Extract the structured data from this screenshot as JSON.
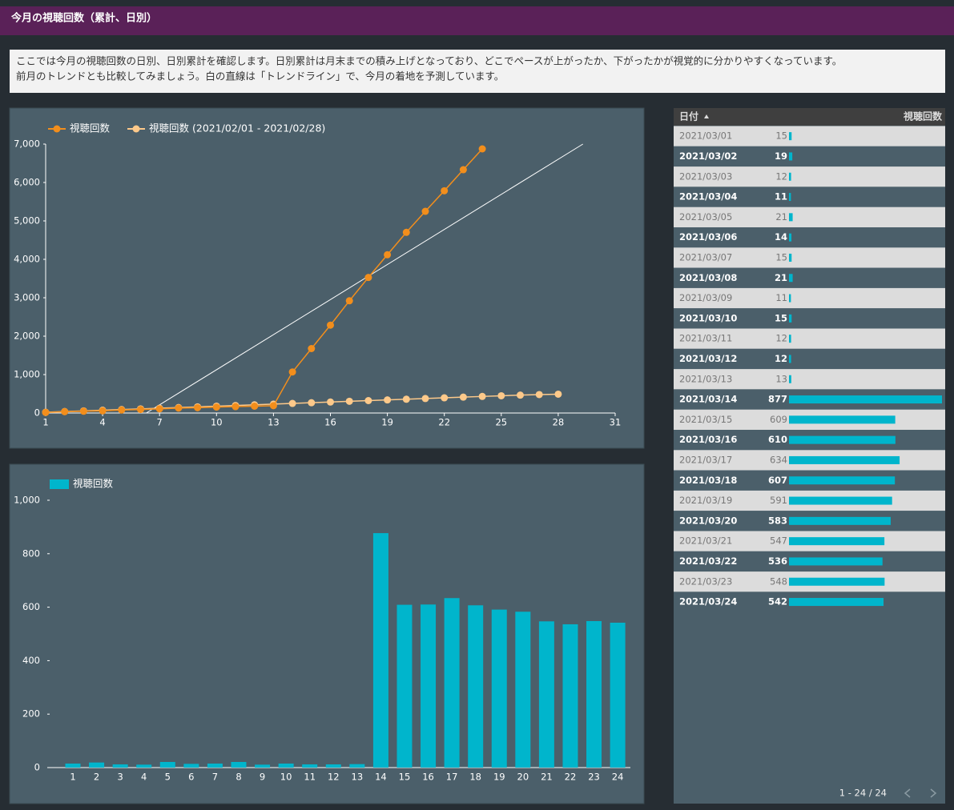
{
  "header": {
    "title": "今月の視聴回数（累計、日別）"
  },
  "description": [
    "ここでは今月の視聴回数の日別、日別累計を確認します。日別累計は月末までの積み上げとなっており、どこでペースが上がったか、下がったかが視覚的に分かりやすくなっています。",
    "前月のトレンドとも比較してみましょう。白の直線は「トレンドライン」で、今月の着地を予測しています。"
  ],
  "chart_data": [
    {
      "type": "line",
      "x": [
        1,
        2,
        3,
        4,
        5,
        6,
        7,
        8,
        9,
        10,
        11,
        12,
        13,
        14,
        15,
        16,
        17,
        18,
        19,
        20,
        21,
        22,
        23,
        24,
        25,
        26,
        27,
        28
      ],
      "series": [
        {
          "name": "視聴回数",
          "color": "#f28e1c",
          "values": [
            15,
            34,
            46,
            57,
            78,
            92,
            107,
            128,
            139,
            154,
            166,
            178,
            191,
            1068,
            1677,
            2287,
            2921,
            3528,
            4119,
            4702,
            5249,
            5785,
            6333,
            6875,
            null,
            null,
            null,
            null
          ]
        },
        {
          "name": "視聴回数 (2021/02/01 - 2021/02/28)",
          "color": "#fdc98a",
          "values": [
            20,
            38,
            55,
            72,
            90,
            108,
            125,
            143,
            160,
            178,
            196,
            213,
            231,
            249,
            268,
            286,
            305,
            323,
            341,
            359,
            377,
            395,
            413,
            431,
            449,
            466,
            480,
            490
          ]
        }
      ],
      "trendline": {
        "color": "#ffffff",
        "x": [
          6.3,
          29.3
        ],
        "values": [
          0,
          7000
        ]
      },
      "xlim": [
        1,
        31
      ],
      "xticks": [
        1,
        4,
        7,
        10,
        13,
        16,
        19,
        22,
        25,
        28,
        31
      ],
      "ylim": [
        0,
        7000
      ],
      "yticks": [
        0,
        {
          "value": 1000,
          "label": "1,000"
        },
        {
          "value": 2000,
          "label": "2,000"
        },
        {
          "value": 3000,
          "label": "3,000"
        },
        {
          "value": 4000,
          "label": "4,000"
        },
        {
          "value": 5000,
          "label": "5,000"
        },
        {
          "value": 6000,
          "label": "6,000"
        },
        {
          "value": 7000,
          "label": "7,000"
        }
      ],
      "legend": "top-left"
    },
    {
      "type": "bar",
      "categories": [
        "1",
        "2",
        "3",
        "4",
        "5",
        "6",
        "7",
        "8",
        "9",
        "10",
        "11",
        "12",
        "13",
        "14",
        "15",
        "16",
        "17",
        "18",
        "19",
        "20",
        "21",
        "22",
        "23",
        "24"
      ],
      "series": [
        {
          "name": "視聴回数",
          "color": "#00b5cc",
          "values": [
            15,
            19,
            12,
            11,
            21,
            14,
            15,
            21,
            11,
            15,
            12,
            12,
            13,
            877,
            609,
            610,
            634,
            607,
            591,
            583,
            547,
            536,
            548,
            542
          ]
        }
      ],
      "ylim": [
        0,
        1000
      ],
      "yticks": [
        0,
        200,
        400,
        600,
        800,
        {
          "value": 1000,
          "label": "1,000"
        }
      ],
      "legend": "top-left"
    }
  ],
  "table": {
    "columns": [
      "日付",
      "視聴回数"
    ],
    "bar_color": "#00b5cc",
    "rows": [
      [
        "2021/03/01",
        15
      ],
      [
        "2021/03/02",
        19
      ],
      [
        "2021/03/03",
        12
      ],
      [
        "2021/03/04",
        11
      ],
      [
        "2021/03/05",
        21
      ],
      [
        "2021/03/06",
        14
      ],
      [
        "2021/03/07",
        15
      ],
      [
        "2021/03/08",
        21
      ],
      [
        "2021/03/09",
        11
      ],
      [
        "2021/03/10",
        15
      ],
      [
        "2021/03/11",
        12
      ],
      [
        "2021/03/12",
        12
      ],
      [
        "2021/03/13",
        13
      ],
      [
        "2021/03/14",
        877
      ],
      [
        "2021/03/15",
        609
      ],
      [
        "2021/03/16",
        610
      ],
      [
        "2021/03/17",
        634
      ],
      [
        "2021/03/18",
        607
      ],
      [
        "2021/03/19",
        591
      ],
      [
        "2021/03/20",
        583
      ],
      [
        "2021/03/21",
        547
      ],
      [
        "2021/03/22",
        536
      ],
      [
        "2021/03/23",
        548
      ],
      [
        "2021/03/24",
        542
      ]
    ],
    "pagination": "1 - 24 / 24"
  }
}
